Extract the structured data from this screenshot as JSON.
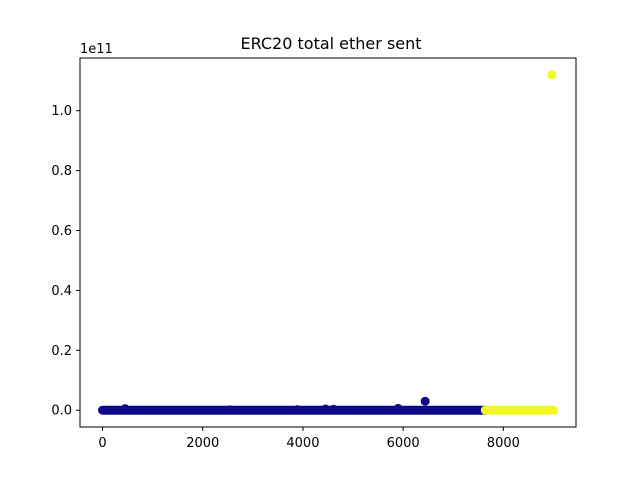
{
  "chart_data": {
    "type": "scatter",
    "title": "ERC20 total ether sent",
    "xlabel": "",
    "ylabel": "",
    "y_offset_label": "1e11",
    "xlim": [
      -450,
      9450
    ],
    "ylim": [
      -5600000000.0,
      117600000000.0
    ],
    "x_ticks": [
      0,
      2000,
      4000,
      6000,
      8000
    ],
    "x_tick_labels": [
      "0",
      "2000",
      "4000",
      "6000",
      "8000"
    ],
    "y_ticks": [
      0,
      20000000000.0,
      40000000000.0,
      60000000000.0,
      80000000000.0,
      100000000000.0
    ],
    "y_tick_labels": [
      "0.0",
      "0.2",
      "0.4",
      "0.6",
      "0.8",
      "1.0"
    ],
    "grid": false,
    "colors": {
      "class_0": "#0d0887",
      "class_1": "#f0f921"
    },
    "dense_bands": [
      {
        "name": "",
        "x_start": 0,
        "x_end": 7640,
        "y": 0,
        "color": "#0d0887"
      },
      {
        "name": "",
        "x_start": 7640,
        "x_end": 9000,
        "y": 0,
        "color": "#f0f921"
      }
    ],
    "points": [
      {
        "x": 450,
        "y": 500000000.0,
        "class": 0
      },
      {
        "x": 2540,
        "y": 100000000.0,
        "class": 0
      },
      {
        "x": 3890,
        "y": 200000000.0,
        "class": 0
      },
      {
        "x": 4450,
        "y": 400000000.0,
        "class": 0
      },
      {
        "x": 4610,
        "y": 300000000.0,
        "class": 0
      },
      {
        "x": 5900,
        "y": 600000000.0,
        "class": 0
      },
      {
        "x": 6440,
        "y": 3000000000.0,
        "class": 0
      },
      {
        "x": 8970,
        "y": 112000000000.0,
        "class": 1
      }
    ]
  }
}
